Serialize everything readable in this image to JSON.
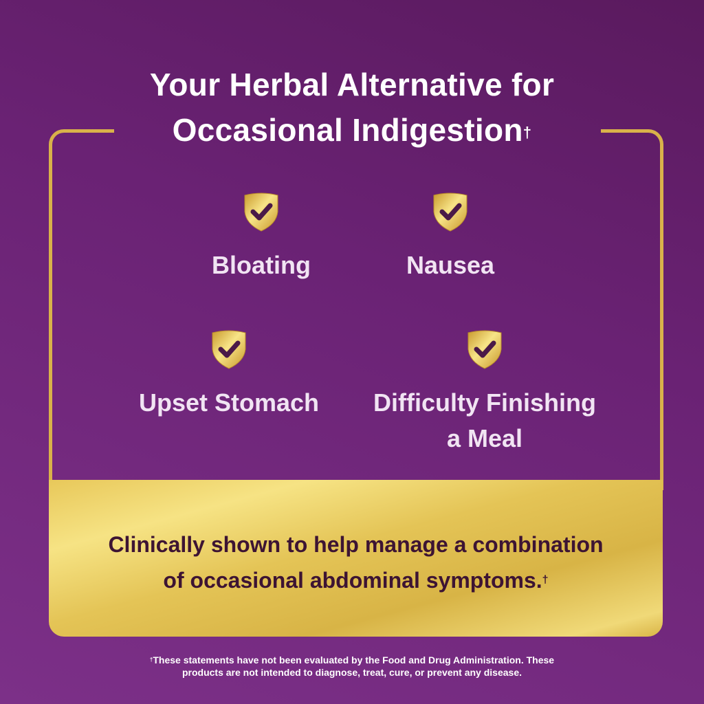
{
  "headline": {
    "line1": "Your Herbal Alternative for",
    "line2": "Occasional Indigestion",
    "dagger": "†"
  },
  "benefits": [
    {
      "label": "Bloating",
      "icon": "shield-check-icon"
    },
    {
      "label": "Nausea",
      "icon": "shield-check-icon"
    },
    {
      "label": "Upset Stomach",
      "icon": "shield-check-icon"
    },
    {
      "label_line1": "Difficulty Finishing",
      "label_line2": "a Meal",
      "icon": "shield-check-icon"
    }
  ],
  "claim": {
    "line1": "Clinically shown to help manage a combination",
    "line2": "of occasional abdominal symptoms.",
    "dagger": "†"
  },
  "disclaimer": {
    "dagger": "†",
    "line1": "These statements have not been evaluated by the Food and Drug Administration. These",
    "line2": "products are not intended to diagnose, treat, cure, or prevent any disease."
  },
  "colors": {
    "background": "#6a2274",
    "gold": "#e4c456",
    "claim_text": "#3d1433"
  }
}
